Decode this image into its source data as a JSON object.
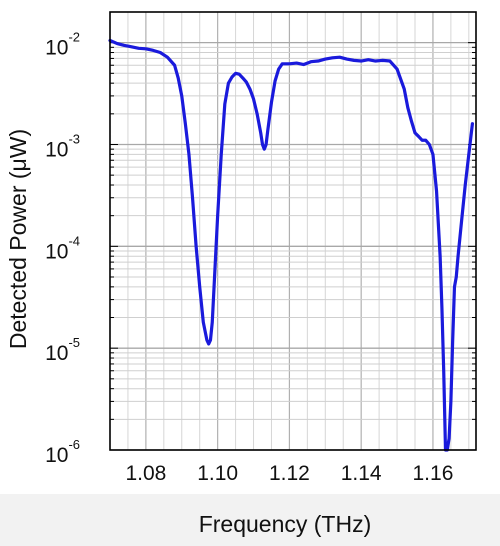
{
  "chart_data": {
    "type": "line",
    "title": "",
    "xlabel": "Frequency (THz)",
    "ylabel": "Detected Power (μW)",
    "xlim": [
      1.07,
      1.172
    ],
    "ylim": [
      1e-06,
      0.02
    ],
    "yscale": "log",
    "grid": true,
    "x_ticks": [
      {
        "value": 1.08,
        "label": "1.08"
      },
      {
        "value": 1.1,
        "label": "1.10"
      },
      {
        "value": 1.12,
        "label": "1.12"
      },
      {
        "value": 1.14,
        "label": "1.14"
      },
      {
        "value": 1.16,
        "label": "1.16"
      }
    ],
    "y_ticks": [
      {
        "value": 0.01,
        "base": "10",
        "exp": "-2"
      },
      {
        "value": 0.001,
        "base": "10",
        "exp": "-3"
      },
      {
        "value": 0.0001,
        "base": "10",
        "exp": "-4"
      },
      {
        "value": 1e-05,
        "base": "10",
        "exp": "-5"
      },
      {
        "value": 1e-06,
        "base": "10",
        "exp": "-6"
      }
    ],
    "line_color": "#1a1adc",
    "series": [
      {
        "x": [
          1.07,
          1.072,
          1.074,
          1.076,
          1.078,
          1.08,
          1.082,
          1.084,
          1.086,
          1.088,
          1.089,
          1.09,
          1.091,
          1.092,
          1.093,
          1.094,
          1.095,
          1.096,
          1.097,
          1.0975,
          1.098,
          1.0985,
          1.099,
          1.1,
          1.101,
          1.102,
          1.103,
          1.104,
          1.105,
          1.106,
          1.107,
          1.108,
          1.109,
          1.11,
          1.111,
          1.112,
          1.1125,
          1.113,
          1.1135,
          1.114,
          1.115,
          1.116,
          1.117,
          1.118,
          1.12,
          1.122,
          1.124,
          1.126,
          1.128,
          1.13,
          1.132,
          1.134,
          1.136,
          1.138,
          1.14,
          1.142,
          1.144,
          1.146,
          1.148,
          1.15,
          1.152,
          1.153,
          1.154,
          1.155,
          1.156,
          1.157,
          1.158,
          1.159,
          1.16,
          1.161,
          1.162,
          1.1625,
          1.163,
          1.1635,
          1.164,
          1.1645,
          1.165,
          1.1655,
          1.166,
          1.1665,
          1.167,
          1.168,
          1.169,
          1.17,
          1.171
        ],
        "y": [
          0.0105,
          0.0098,
          0.0094,
          0.0091,
          0.0088,
          0.0087,
          0.0084,
          0.008,
          0.0072,
          0.006,
          0.0045,
          0.003,
          0.0016,
          0.0008,
          0.0003,
          0.0001,
          4e-05,
          1.8e-05,
          1.2e-05,
          1.1e-05,
          1.2e-05,
          1.8e-05,
          4e-05,
          0.0002,
          0.0008,
          0.0025,
          0.004,
          0.0046,
          0.005,
          0.0049,
          0.0045,
          0.0041,
          0.0035,
          0.0028,
          0.002,
          0.0013,
          0.001,
          0.0009,
          0.001,
          0.0014,
          0.0026,
          0.0042,
          0.0055,
          0.0062,
          0.0062,
          0.0063,
          0.0061,
          0.0065,
          0.0066,
          0.0069,
          0.0071,
          0.0072,
          0.0069,
          0.0067,
          0.0066,
          0.0068,
          0.0066,
          0.0067,
          0.0066,
          0.0055,
          0.0035,
          0.0023,
          0.0017,
          0.0013,
          0.0012,
          0.0011,
          0.0011,
          0.001,
          0.0008,
          0.00035,
          8e-05,
          2.5e-05,
          6e-06,
          1e-06,
          1e-06,
          1.3e-06,
          3e-06,
          1.2e-05,
          4e-05,
          5e-05,
          8e-05,
          0.00018,
          0.0004,
          0.0008,
          0.0016
        ]
      }
    ]
  }
}
